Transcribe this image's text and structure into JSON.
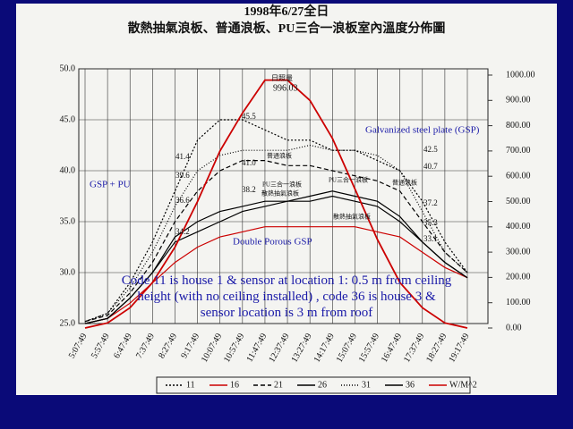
{
  "chart_data": {
    "type": "line",
    "title": "1998年6/27全日",
    "subtitle": "散熱抽氣浪板、普通浪板、PU三合一浪板室內溫度分佈圖",
    "categories": [
      "5:07:49",
      "5:57:49",
      "6:47:49",
      "7:37:49",
      "8:27:49",
      "9:17:49",
      "10:07:49",
      "10:57:49",
      "11:47:49",
      "12:37:49",
      "13:27:49",
      "14:17:49",
      "15:07:49",
      "15:57:49",
      "16:47:49",
      "17:37:49",
      "18:27:49",
      "19:17:49"
    ],
    "ylim": [
      25,
      50
    ],
    "yticks": [
      {
        "value": 25,
        "label": "25.0"
      },
      {
        "value": 30,
        "label": "30.0"
      },
      {
        "value": 35,
        "label": "35.0"
      },
      {
        "value": 40,
        "label": "40.0"
      },
      {
        "value": 45,
        "label": "45.0"
      },
      {
        "value": 50,
        "label": "50.0"
      }
    ],
    "y2lim": [
      0,
      1000
    ],
    "y2ticks": [
      {
        "value": 0,
        "label": "0.00"
      },
      {
        "value": 100,
        "label": "100.00"
      },
      {
        "value": 200,
        "label": "200.00"
      },
      {
        "value": 300,
        "label": "300.00"
      },
      {
        "value": 400,
        "label": "400.00"
      },
      {
        "value": 500,
        "label": "500.00"
      },
      {
        "value": 600,
        "label": "600.00"
      },
      {
        "value": 700,
        "label": "700.00"
      },
      {
        "value": 800,
        "label": "800.00"
      },
      {
        "value": 900,
        "label": "900.00"
      },
      {
        "value": 1000,
        "label": "1000.00"
      }
    ],
    "grid": true,
    "series": [
      {
        "name": "11",
        "color": "#000000",
        "dash": "2,2",
        "values": [
          25.2,
          26,
          29,
          33,
          38,
          43,
          45,
          45,
          44,
          43,
          43,
          42,
          42,
          41,
          40,
          37,
          33,
          30
        ]
      },
      {
        "name": "16",
        "color": "#cc0000",
        "values": [
          25,
          25.5,
          27,
          29,
          31,
          32.5,
          33.5,
          34,
          34.5,
          34.5,
          34.5,
          34.5,
          34.5,
          34,
          33.5,
          32,
          30.5,
          29.5
        ]
      },
      {
        "name": "21",
        "color": "#000000",
        "dash": "5,3",
        "values": [
          25.2,
          25.8,
          28,
          31,
          35,
          38,
          40,
          41,
          41,
          40.5,
          40.5,
          40,
          39.5,
          39,
          38,
          35,
          32,
          30
        ]
      },
      {
        "name": "26",
        "color": "#000000",
        "values": [
          25,
          25.5,
          27.5,
          30,
          33,
          34,
          35,
          36,
          36.5,
          37,
          37,
          37.5,
          37,
          36.5,
          35,
          33,
          31,
          29.5
        ]
      },
      {
        "name": "31",
        "color": "#000000",
        "dash": "1,2",
        "values": [
          25.2,
          26,
          28.5,
          32,
          36.5,
          40,
          41.5,
          42,
          42,
          42,
          42.5,
          42,
          42,
          41.5,
          40,
          36,
          32,
          30
        ]
      },
      {
        "name": "36",
        "color": "#000000",
        "values": [
          25,
          25.5,
          27.5,
          30,
          33.5,
          35,
          36,
          36.5,
          37,
          37,
          37.5,
          38,
          37.5,
          37,
          35.5,
          33,
          31,
          29.5
        ]
      },
      {
        "name": "W/M^2",
        "color": "#cc0000",
        "axis": "y2",
        "values": [
          0,
          20,
          80,
          180,
          320,
          500,
          700,
          850,
          980,
          980,
          900,
          750,
          550,
          350,
          180,
          80,
          20,
          0
        ]
      }
    ],
    "annotations": [
      "日照量",
      "996.03",
      "Galvanized steel plate (GSP)",
      "GSP + PU",
      "Double Porous GSP",
      "普通浪板",
      "PU三合一浪板",
      "散熱抽氣浪板",
      "PU三合一浪板",
      "普通浪板",
      "散熱抽氣浪板",
      "45.5",
      "41.4",
      "41.0",
      "39.6",
      "38.2",
      "36.6",
      "34.2",
      "42.5",
      "40.7",
      "37.2",
      "35.3",
      "33.1"
    ],
    "note": "Code 11 is house 1 & sensor at location 1: 0.5 m from ceiling height (with no ceiling installed) , code 36 is house 3 & sensor location is 3 m from roof"
  }
}
